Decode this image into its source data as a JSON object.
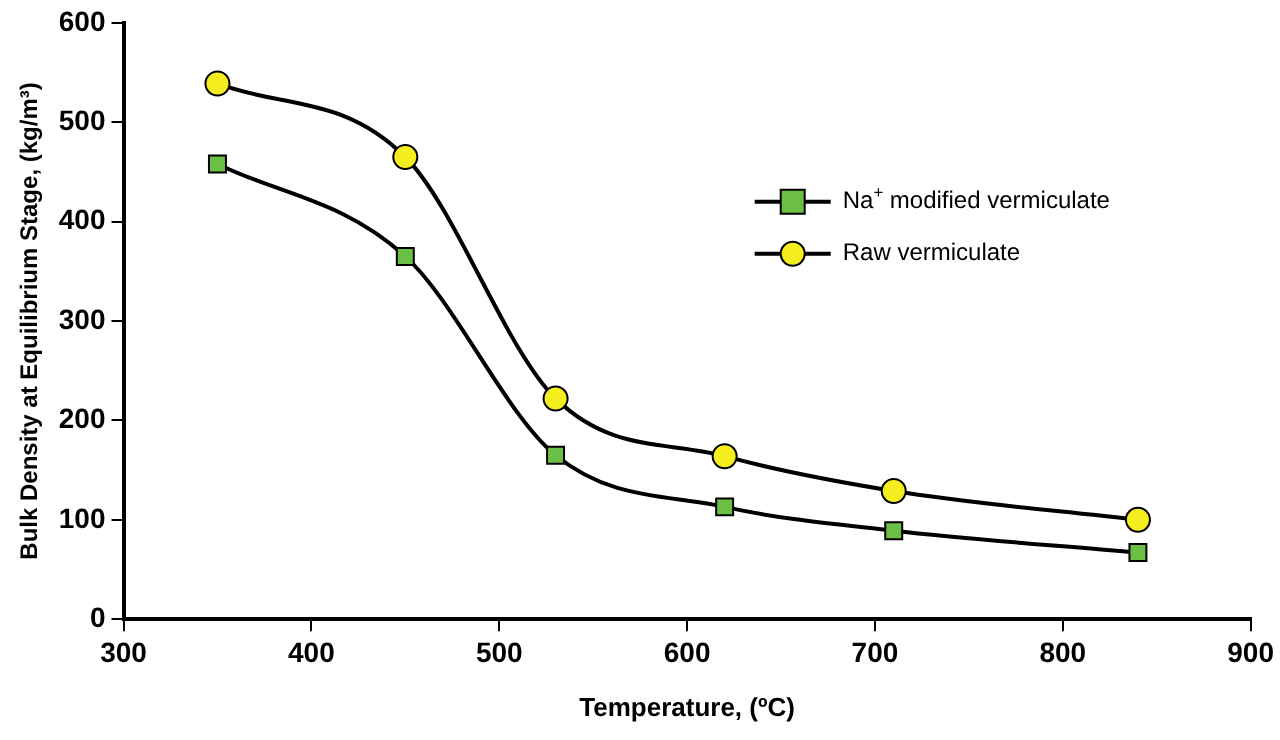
{
  "chart_data": {
    "type": "line",
    "xlabel": "Temperature, (ºC)",
    "ylabel": "Bulk Density at Equilibrium Stage, (kg/m³)",
    "x": [
      350,
      450,
      530,
      620,
      710,
      840
    ],
    "series": [
      {
        "name": "Na$^{+}$ modified vermiculate",
        "color": "#6cbf45",
        "marker": "square",
        "values": [
          458,
          365,
          165,
          113,
          89,
          67
        ]
      },
      {
        "name": "Raw vermiculate",
        "color": "#f5ee1f",
        "marker": "circle",
        "values": [
          539,
          465,
          222,
          164,
          129,
          100
        ]
      }
    ],
    "xlim": [
      300,
      900
    ],
    "xticks": [
      300,
      400,
      500,
      600,
      700,
      800,
      900
    ],
    "ylim": [
      0,
      600
    ],
    "yticks": [
      0,
      100,
      200,
      300,
      400,
      500,
      600
    ],
    "grid": false,
    "legend": "right",
    "line_style": "solid"
  }
}
